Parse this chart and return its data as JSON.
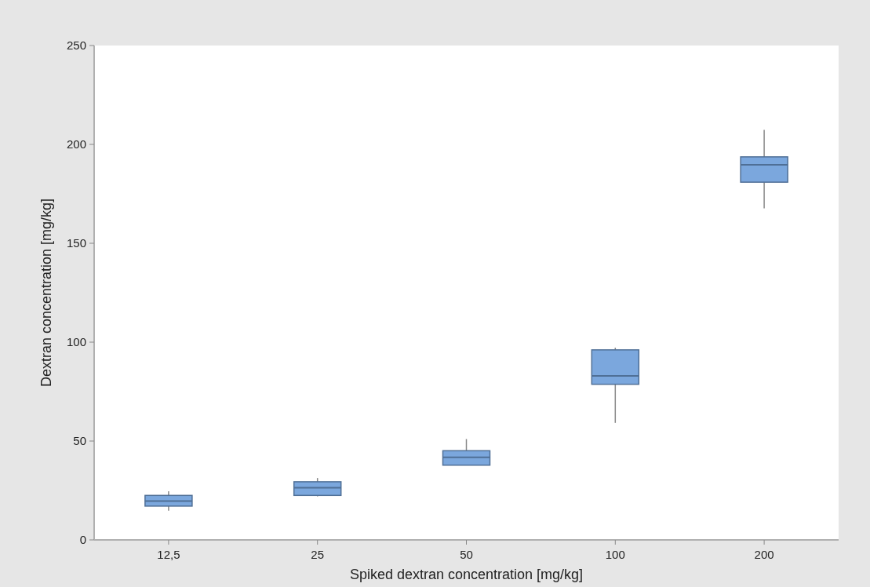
{
  "chart_data": {
    "type": "box",
    "xlabel": "Spiked dextran concentration [mg/kg]",
    "ylabel": "Dextran concentration [mg/kg]",
    "categories": [
      "12,5",
      "25",
      "50",
      "100",
      "200"
    ],
    "boxes": [
      {
        "low": 14.8,
        "q1": 17.1,
        "median": 19.6,
        "q3": 22.5,
        "high": 24.6
      },
      {
        "low": 22.0,
        "q1": 22.5,
        "median": 26.4,
        "q3": 29.4,
        "high": 31.3
      },
      {
        "low": 37.8,
        "q1": 37.8,
        "median": 41.8,
        "q3": 45.1,
        "high": 51.0
      },
      {
        "low": 59.2,
        "q1": 78.7,
        "median": 82.9,
        "q3": 96.1,
        "high": 97.2
      },
      {
        "low": 167.7,
        "q1": 180.9,
        "median": 189.7,
        "q3": 193.7,
        "high": 207.3
      }
    ],
    "color": "#7ba7dd",
    "ylim": [
      0,
      250
    ],
    "yticks": [
      0,
      50,
      100,
      150,
      200,
      250
    ],
    "grid": false
  }
}
